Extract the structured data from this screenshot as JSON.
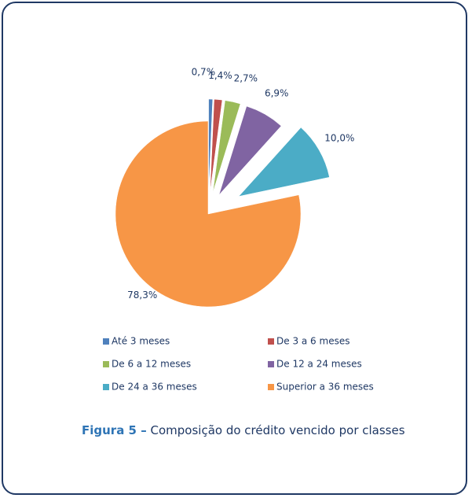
{
  "chart_data": {
    "type": "pie",
    "categories": [
      "Até 3 meses",
      "De 3 a 6 meses",
      "De 6 a 12 meses",
      "De 12 a 24 meses",
      "De 24 a 36 meses",
      "Superior a 36 meses"
    ],
    "values": [
      0.7,
      1.4,
      2.7,
      6.9,
      10.0,
      78.3
    ],
    "value_labels": [
      "0,7%",
      "1,4%",
      "2,7%",
      "6,9%",
      "10,0%",
      "78,3%"
    ],
    "colors": [
      "#4f81bd",
      "#c0504d",
      "#9bbb59",
      "#8064a2",
      "#4bacc6",
      "#f79646"
    ],
    "legend": "bottom"
  },
  "caption": {
    "label": "Figura 5 –",
    "text": "Composição do crédito vencido por classes"
  }
}
